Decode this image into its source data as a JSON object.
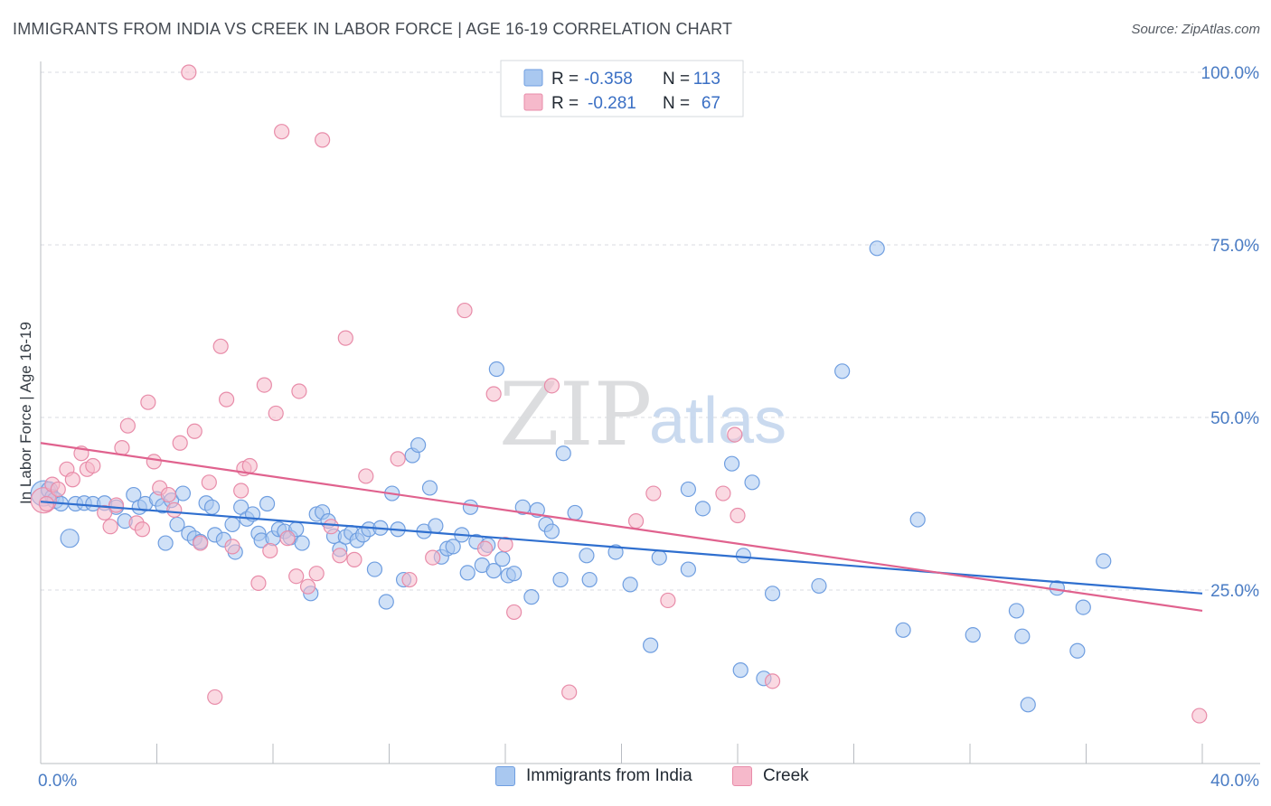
{
  "title": "IMMIGRANTS FROM INDIA VS CREEK IN LABOR FORCE | AGE 16-19 CORRELATION CHART",
  "source": "Source: ZipAtlas.com",
  "watermark": {
    "zip": "ZIP",
    "atlas": "atlas"
  },
  "colors": {
    "blue_fill": "#a9c8f0",
    "blue_stroke": "#6f9ee0",
    "blue_line": "#2f6fcf",
    "pink_fill": "#f6b9cb",
    "pink_stroke": "#e88ca9",
    "pink_line": "#e0628e",
    "grid": "#d8dbe0",
    "axis_text": "#4a7cc4"
  },
  "legend": {
    "row1": {
      "r_label": "R =",
      "r_value": "-0.358",
      "n_label": "N =",
      "n_value": "113"
    },
    "row2": {
      "r_label": "R =",
      "r_value": "-0.281",
      "n_label": "N =",
      "n_value": "67"
    }
  },
  "chart_data": {
    "type": "scatter",
    "title": "IMMIGRANTS FROM INDIA VS CREEK IN LABOR FORCE | AGE 16-19 CORRELATION CHART",
    "xlabel": "",
    "ylabel": "In Labor Force | Age 16-19",
    "xlim": [
      0,
      40
    ],
    "ylim": [
      0,
      102
    ],
    "x_tick_labels": [
      "0.0%",
      "40.0%"
    ],
    "y_ticks": [
      25,
      50,
      75,
      100
    ],
    "y_tick_labels": [
      "25.0%",
      "50.0%",
      "75.0%",
      "100.0%"
    ],
    "grid": true,
    "legend_position": "top-center",
    "series": [
      {
        "name": "Immigrants from India",
        "color": "#a9c8f0",
        "r": -0.358,
        "n": 113,
        "trend": {
          "x": [
            0,
            40
          ],
          "y": [
            37.8,
            24.5
          ]
        },
        "points": [
          [
            0.1,
            39,
            14
          ],
          [
            0.3,
            39.5,
            9
          ],
          [
            0.4,
            38.5,
            8
          ],
          [
            0.5,
            38,
            9
          ],
          [
            0.7,
            37.5,
            8
          ],
          [
            1.0,
            32.5,
            10
          ],
          [
            1.2,
            37.5,
            8
          ],
          [
            1.5,
            37.6,
            8
          ],
          [
            1.8,
            37.5,
            8
          ],
          [
            2.2,
            37.6,
            8
          ],
          [
            2.6,
            37,
            8
          ],
          [
            2.9,
            35,
            8
          ],
          [
            3.2,
            38.8,
            8
          ],
          [
            3.4,
            37,
            8
          ],
          [
            3.6,
            37.5,
            8
          ],
          [
            4.0,
            38.2,
            8
          ],
          [
            4.2,
            37.2,
            8
          ],
          [
            4.3,
            31.8,
            8
          ],
          [
            4.5,
            38,
            8
          ],
          [
            4.7,
            34.5,
            8
          ],
          [
            4.9,
            39,
            8
          ],
          [
            5.1,
            33.2,
            8
          ],
          [
            5.3,
            32.5,
            8
          ],
          [
            5.5,
            32,
            8
          ],
          [
            5.7,
            37.6,
            8
          ],
          [
            5.9,
            37,
            8
          ],
          [
            6.0,
            33,
            8
          ],
          [
            6.3,
            32.3,
            8
          ],
          [
            6.6,
            34.5,
            8
          ],
          [
            6.7,
            30.5,
            8
          ],
          [
            6.9,
            37,
            8
          ],
          [
            7.1,
            35.3,
            8
          ],
          [
            7.3,
            36,
            8
          ],
          [
            7.5,
            33.2,
            8
          ],
          [
            7.6,
            32.2,
            8
          ],
          [
            7.8,
            37.5,
            8
          ],
          [
            8.0,
            32.5,
            8
          ],
          [
            8.2,
            33.8,
            8
          ],
          [
            8.4,
            33.5,
            8
          ],
          [
            8.6,
            32.6,
            8
          ],
          [
            8.8,
            33.8,
            8
          ],
          [
            9.0,
            31.8,
            8
          ],
          [
            9.3,
            24.5,
            8
          ],
          [
            9.5,
            36,
            8
          ],
          [
            9.7,
            36.3,
            8
          ],
          [
            9.9,
            35,
            8
          ],
          [
            10.1,
            32.8,
            8
          ],
          [
            10.3,
            30.9,
            8
          ],
          [
            10.5,
            32.7,
            8
          ],
          [
            10.7,
            33.3,
            8
          ],
          [
            10.9,
            32.2,
            8
          ],
          [
            11.1,
            33,
            8
          ],
          [
            11.3,
            33.8,
            8
          ],
          [
            11.5,
            28,
            8
          ],
          [
            11.7,
            34,
            8
          ],
          [
            11.9,
            23.3,
            8
          ],
          [
            12.1,
            39,
            8
          ],
          [
            12.3,
            33.8,
            8
          ],
          [
            12.5,
            26.5,
            8
          ],
          [
            12.8,
            44.5,
            8
          ],
          [
            13.0,
            46,
            8
          ],
          [
            13.2,
            33.5,
            8
          ],
          [
            13.4,
            39.8,
            8
          ],
          [
            13.6,
            34.3,
            8
          ],
          [
            13.8,
            29.8,
            8
          ],
          [
            14.0,
            31,
            8
          ],
          [
            14.2,
            31.3,
            8
          ],
          [
            14.5,
            33,
            8
          ],
          [
            14.7,
            27.5,
            8
          ],
          [
            14.8,
            37,
            8
          ],
          [
            15.0,
            32,
            8
          ],
          [
            15.2,
            28.6,
            8
          ],
          [
            15.4,
            31.5,
            8
          ],
          [
            15.7,
            57,
            8
          ],
          [
            15.6,
            27.8,
            8
          ],
          [
            15.9,
            29.5,
            8
          ],
          [
            16.1,
            27.1,
            8
          ],
          [
            16.3,
            27.4,
            8
          ],
          [
            16.6,
            37,
            8
          ],
          [
            16.9,
            24,
            8
          ],
          [
            17.1,
            36.6,
            8
          ],
          [
            17.4,
            34.5,
            8
          ],
          [
            17.6,
            33.5,
            8
          ],
          [
            17.9,
            26.5,
            8
          ],
          [
            18.0,
            44.8,
            8
          ],
          [
            18.4,
            36.2,
            8
          ],
          [
            18.8,
            30,
            8
          ],
          [
            18.9,
            26.5,
            8
          ],
          [
            19.8,
            30.5,
            8
          ],
          [
            20.3,
            25.8,
            8
          ],
          [
            21.0,
            17,
            8
          ],
          [
            21.3,
            29.7,
            8
          ],
          [
            22.3,
            28,
            8
          ],
          [
            22.3,
            39.6,
            8
          ],
          [
            22.8,
            36.8,
            8
          ],
          [
            23.8,
            43.3,
            8
          ],
          [
            24.1,
            13.4,
            8
          ],
          [
            24.2,
            30,
            8
          ],
          [
            24.5,
            40.6,
            8
          ],
          [
            24.9,
            12.2,
            8
          ],
          [
            25.2,
            24.5,
            8
          ],
          [
            26.8,
            25.6,
            8
          ],
          [
            27.6,
            56.7,
            8
          ],
          [
            28.8,
            74.5,
            8
          ],
          [
            29.7,
            19.2,
            8
          ],
          [
            30.2,
            35.2,
            8
          ],
          [
            32.1,
            18.5,
            8
          ],
          [
            33.6,
            22,
            8
          ],
          [
            33.8,
            18.3,
            8
          ],
          [
            34.0,
            8.4,
            8
          ],
          [
            35.0,
            25.3,
            8
          ],
          [
            35.7,
            16.2,
            8
          ],
          [
            35.9,
            22.5,
            8
          ],
          [
            36.6,
            29.2,
            8
          ]
        ]
      },
      {
        "name": "Creek",
        "color": "#f6b9cb",
        "r": -0.281,
        "n": 67,
        "trend": {
          "x": [
            0,
            40
          ],
          "y": [
            46.3,
            22.0
          ]
        },
        "points": [
          [
            0.1,
            38,
            14
          ],
          [
            0.4,
            40.3,
            8
          ],
          [
            0.6,
            39.6,
            8
          ],
          [
            0.9,
            42.5,
            8
          ],
          [
            1.1,
            41,
            8
          ],
          [
            1.4,
            44.8,
            8
          ],
          [
            1.6,
            42.5,
            8
          ],
          [
            1.8,
            43,
            8
          ],
          [
            2.2,
            36.2,
            8
          ],
          [
            2.4,
            34.2,
            8
          ],
          [
            2.6,
            37.3,
            8
          ],
          [
            2.8,
            45.6,
            8
          ],
          [
            3.0,
            48.8,
            8
          ],
          [
            3.3,
            34.7,
            8
          ],
          [
            3.5,
            33.8,
            8
          ],
          [
            3.7,
            52.2,
            8
          ],
          [
            3.9,
            43.6,
            8
          ],
          [
            4.1,
            39.8,
            8
          ],
          [
            4.4,
            38.8,
            8
          ],
          [
            4.6,
            36.6,
            8
          ],
          [
            4.8,
            46.3,
            8
          ],
          [
            5.1,
            100,
            8
          ],
          [
            5.3,
            48,
            8
          ],
          [
            5.5,
            31.8,
            8
          ],
          [
            5.8,
            40.6,
            8
          ],
          [
            6.0,
            9.5,
            8
          ],
          [
            6.2,
            60.3,
            8
          ],
          [
            6.4,
            52.6,
            8
          ],
          [
            6.6,
            31.3,
            8
          ],
          [
            6.9,
            39.4,
            8
          ],
          [
            7.0,
            42.6,
            8
          ],
          [
            7.2,
            43,
            8
          ],
          [
            7.5,
            26,
            8
          ],
          [
            7.7,
            54.7,
            8
          ],
          [
            7.9,
            30.7,
            8
          ],
          [
            8.1,
            50.6,
            8
          ],
          [
            8.3,
            91.4,
            8
          ],
          [
            8.5,
            32.5,
            8
          ],
          [
            8.8,
            27,
            8
          ],
          [
            8.9,
            53.8,
            8
          ],
          [
            9.2,
            25.5,
            8
          ],
          [
            9.5,
            27.4,
            8
          ],
          [
            9.7,
            90.2,
            8
          ],
          [
            10.0,
            34.2,
            8
          ],
          [
            10.3,
            30,
            8
          ],
          [
            10.5,
            61.5,
            8
          ],
          [
            10.8,
            29.4,
            8
          ],
          [
            11.2,
            41.5,
            8
          ],
          [
            12.3,
            44,
            8
          ],
          [
            12.7,
            26.5,
            8
          ],
          [
            13.5,
            29.7,
            8
          ],
          [
            14.6,
            65.5,
            8
          ],
          [
            15.3,
            31,
            8
          ],
          [
            15.6,
            53.4,
            8
          ],
          [
            16.0,
            31.6,
            8
          ],
          [
            16.3,
            21.8,
            8
          ],
          [
            17.6,
            54.6,
            8
          ],
          [
            18.2,
            10.2,
            8
          ],
          [
            20.5,
            35,
            8
          ],
          [
            21.1,
            39,
            8
          ],
          [
            21.6,
            23.5,
            8
          ],
          [
            23.5,
            39,
            8
          ],
          [
            23.9,
            47.5,
            8
          ],
          [
            24.0,
            35.8,
            8
          ],
          [
            25.2,
            11.8,
            8
          ],
          [
            39.9,
            6.8,
            8
          ],
          [
            0.2,
            37.5,
            8
          ]
        ]
      }
    ]
  },
  "bottom_legend": {
    "series1": "Immigrants from India",
    "series2": "Creek"
  }
}
